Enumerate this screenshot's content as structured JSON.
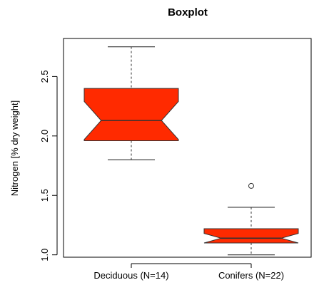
{
  "chart_data": {
    "type": "boxplot",
    "title": "Boxplot",
    "xlabel": "",
    "ylabel": "Nitrogen [% dry weight]",
    "ylim": [
      0.98,
      2.82
    ],
    "yticks": [
      1.0,
      1.5,
      2.0,
      2.5
    ],
    "ytick_labels": [
      "1.0",
      "1.5",
      "2.0",
      "2.5"
    ],
    "notched": true,
    "grid": false,
    "categories": [
      "Deciduous (N=14)",
      "Conifers (N=22)"
    ],
    "boxes": [
      {
        "category": "Deciduous (N=14)",
        "whisker_low": 1.8,
        "q1": 1.96,
        "median": 2.13,
        "q3": 2.4,
        "whisker_high": 2.75,
        "notch_low": 1.97,
        "notch_high": 2.29,
        "outliers": []
      },
      {
        "category": "Conifers (N=22)",
        "whisker_low": 1.0,
        "q1": 1.1,
        "median": 1.14,
        "q3": 1.22,
        "whisker_high": 1.4,
        "notch_low": 1.1,
        "notch_high": 1.18,
        "outliers": [
          1.58
        ]
      }
    ],
    "colors": {
      "box_fill": "#ff2a00",
      "line": "#333333",
      "axis": "#000000"
    }
  }
}
